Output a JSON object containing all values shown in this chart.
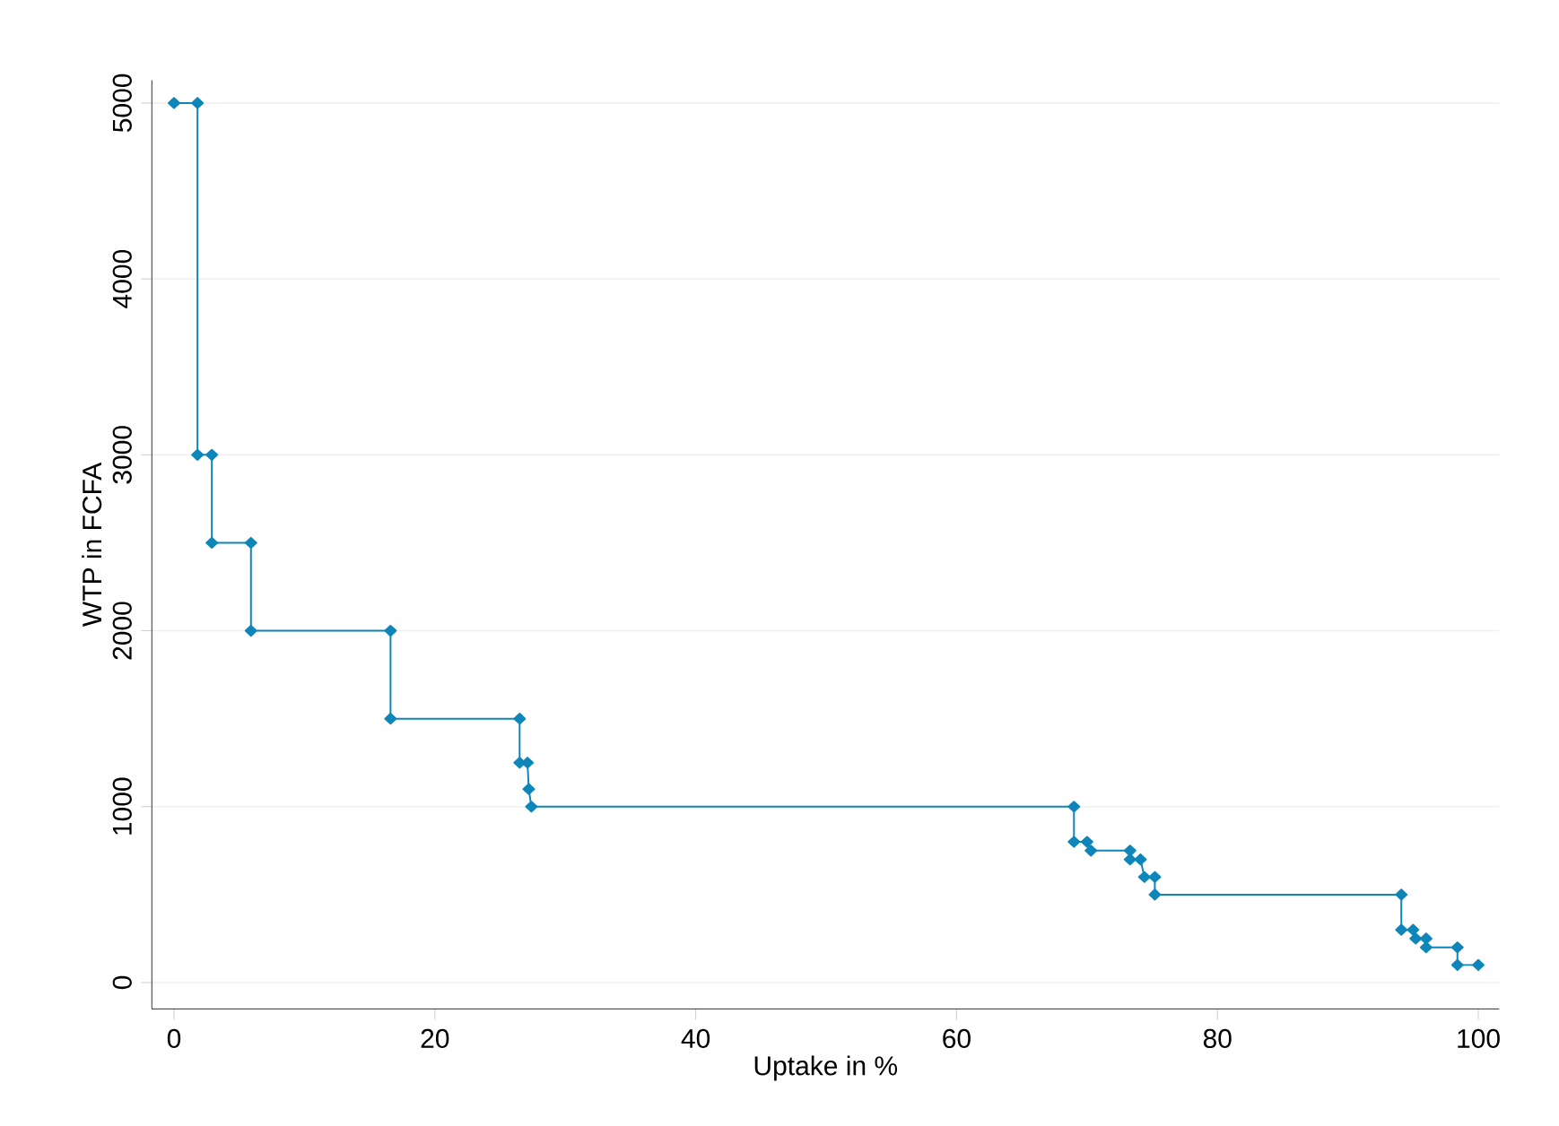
{
  "chart_data": {
    "type": "line",
    "xlabel": "Uptake in %",
    "ylabel": "WTP in FCFA",
    "xlim": [
      -1.7,
      101.6
    ],
    "ylim": [
      -150,
      5130
    ],
    "xticks": [
      0,
      20,
      40,
      60,
      80,
      100
    ],
    "yticks": [
      0,
      1000,
      2000,
      3000,
      4000,
      5000
    ],
    "grid": "y",
    "marker": "diamond",
    "line_style": "solid",
    "series": [
      {
        "color": "#0e86b9",
        "x": [
          0,
          1.8,
          1.8,
          2.9,
          2.9,
          5.9,
          5.9,
          16.6,
          16.6,
          26.5,
          26.5,
          27.1,
          27.2,
          27.4,
          69.0,
          69.0,
          70.0,
          70.3,
          73.3,
          73.3,
          74.1,
          74.4,
          75.2,
          75.2,
          94.1,
          94.1,
          95.0,
          95.2,
          96.0,
          96.0,
          98.4,
          98.4,
          100
        ],
        "values": [
          5000,
          5000,
          3000,
          3000,
          2500,
          2500,
          2000,
          2000,
          1500,
          1500,
          1250,
          1250,
          1100,
          1000,
          1000,
          800,
          800,
          750,
          750,
          700,
          700,
          600,
          600,
          500,
          500,
          300,
          300,
          250,
          250,
          200,
          200,
          100,
          100
        ]
      }
    ]
  }
}
